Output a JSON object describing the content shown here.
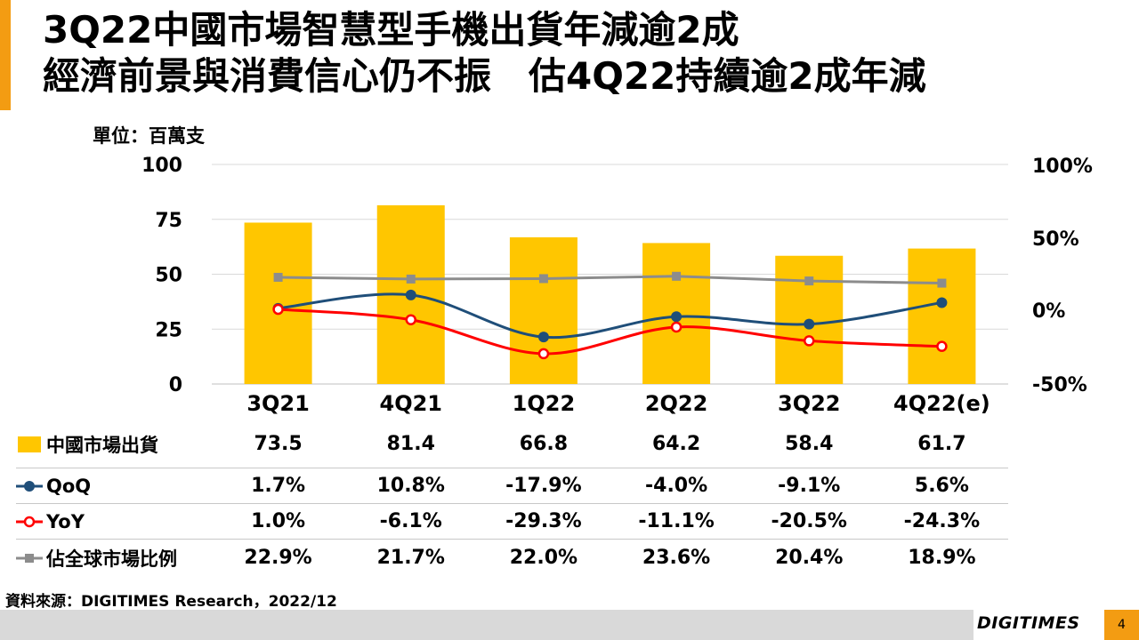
{
  "title_line1": "3Q22中國市場智慧型手機出貨年減逾2成",
  "title_line2": "經濟前景與消費信心仍不振　估4Q22持續逾2成年減",
  "unit_label": "單位：百萬支",
  "source": "資料來源：DIGITIMES Research，2022/12",
  "brand": "DIGITIMES",
  "page_number": "4",
  "colors": {
    "accent": "#f39c12",
    "bar": "#ffc600",
    "qoq": "#1f4e79",
    "yoy": "#ff0000",
    "share": "#8c8c8c"
  },
  "chart_data": {
    "type": "bar",
    "categories": [
      "3Q21",
      "4Q21",
      "1Q22",
      "2Q22",
      "3Q22",
      "4Q22(e)"
    ],
    "y_left": {
      "range": [
        0,
        100
      ],
      "ticks": [
        "100",
        "75",
        "50",
        "25",
        "0"
      ]
    },
    "y_right": {
      "range": [
        -50,
        100
      ],
      "ticks": [
        "100%",
        "50%",
        "0%",
        "-50%"
      ]
    },
    "grid": true,
    "series": [
      {
        "name": "中國市場出貨",
        "type": "bar",
        "axis": "left",
        "values": [
          73.5,
          81.4,
          66.8,
          64.2,
          58.4,
          61.7
        ],
        "labels": [
          "73.5",
          "81.4",
          "66.8",
          "64.2",
          "58.4",
          "61.7"
        ]
      },
      {
        "name": "QoQ",
        "type": "line",
        "axis": "right",
        "values": [
          1.7,
          10.8,
          -17.9,
          -4.0,
          -9.1,
          5.6
        ],
        "labels": [
          "1.7%",
          "10.8%",
          "-17.9%",
          "-4.0%",
          "-9.1%",
          "5.6%"
        ]
      },
      {
        "name": "YoY",
        "type": "line",
        "axis": "right",
        "values": [
          1.0,
          -6.1,
          -29.3,
          -11.1,
          -20.5,
          -24.3
        ],
        "labels": [
          "1.0%",
          "-6.1%",
          "-29.3%",
          "-11.1%",
          "-20.5%",
          "-24.3%"
        ]
      },
      {
        "name": "佔全球市場比例",
        "type": "line",
        "axis": "right",
        "values": [
          22.9,
          21.7,
          22.0,
          23.6,
          20.4,
          18.9
        ],
        "labels": [
          "22.9%",
          "21.7%",
          "22.0%",
          "23.6%",
          "20.4%",
          "18.9%"
        ]
      }
    ]
  }
}
